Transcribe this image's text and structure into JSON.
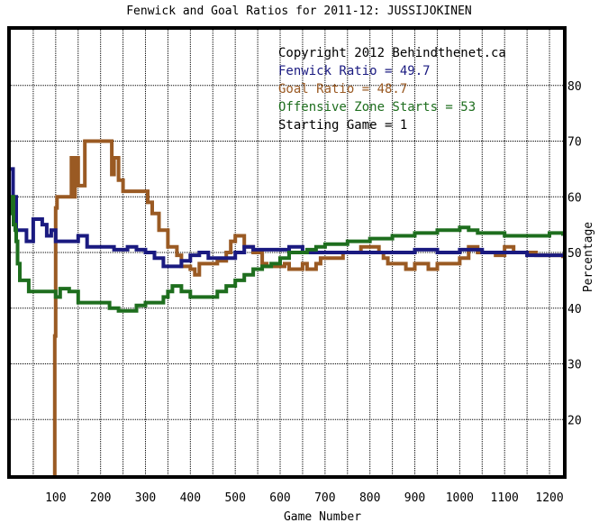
{
  "chart_data": {
    "type": "line",
    "title": "Fenwick and Goal Ratios for 2011-12: JUSSIJOKINEN",
    "xlabel": "Game Number",
    "ylabel": "Percentage",
    "xlim": [
      0,
      1230
    ],
    "ylim": [
      10,
      90
    ],
    "x_ticks": [
      100,
      200,
      300,
      400,
      500,
      600,
      700,
      800,
      900,
      1000,
      1100,
      1200
    ],
    "y_ticks": [
      20,
      30,
      40,
      50,
      60,
      70,
      80
    ],
    "grid": true,
    "legend_position": "top-right",
    "annotations": [
      {
        "text": "Copyright 2012 Behindthenet.ca",
        "color": "#000000"
      },
      {
        "text": "Fenwick Ratio = 49.7",
        "color": "#1a1a80"
      },
      {
        "text": "Goal Ratio = 48.7",
        "color": "#9a5a23"
      },
      {
        "text": "Offensive Zone Starts = 53",
        "color": "#1e6e1e"
      },
      {
        "text": "Starting Game = 1",
        "color": "#000000"
      }
    ],
    "series": [
      {
        "name": "Fenwick Ratio",
        "color": "#1a1a80",
        "points": [
          [
            0,
            65
          ],
          [
            5,
            60
          ],
          [
            12,
            54
          ],
          [
            25,
            54
          ],
          [
            35,
            52
          ],
          [
            50,
            56
          ],
          [
            60,
            56
          ],
          [
            70,
            55
          ],
          [
            80,
            53
          ],
          [
            90,
            54
          ],
          [
            100,
            52
          ],
          [
            130,
            52
          ],
          [
            150,
            53
          ],
          [
            170,
            51
          ],
          [
            200,
            51
          ],
          [
            230,
            50.5
          ],
          [
            260,
            51
          ],
          [
            280,
            50.5
          ],
          [
            300,
            50
          ],
          [
            320,
            49
          ],
          [
            340,
            47.5
          ],
          [
            360,
            47.5
          ],
          [
            380,
            48.5
          ],
          [
            400,
            49.5
          ],
          [
            420,
            50
          ],
          [
            440,
            49
          ],
          [
            460,
            49
          ],
          [
            480,
            49
          ],
          [
            500,
            50
          ],
          [
            520,
            51
          ],
          [
            540,
            50.5
          ],
          [
            560,
            50.5
          ],
          [
            580,
            50.5
          ],
          [
            600,
            50.5
          ],
          [
            620,
            51
          ],
          [
            650,
            50
          ],
          [
            700,
            50
          ],
          [
            750,
            50
          ],
          [
            800,
            50
          ],
          [
            850,
            50
          ],
          [
            900,
            50.5
          ],
          [
            950,
            50
          ],
          [
            1000,
            50.5
          ],
          [
            1050,
            50
          ],
          [
            1100,
            50
          ],
          [
            1150,
            49.5
          ],
          [
            1200,
            49.5
          ],
          [
            1230,
            49.5
          ]
        ]
      },
      {
        "name": "Goal Ratio",
        "color": "#9a5a23",
        "points": [
          [
            95,
            10
          ],
          [
            98,
            35
          ],
          [
            100,
            58
          ],
          [
            103,
            60
          ],
          [
            130,
            60
          ],
          [
            135,
            67
          ],
          [
            140,
            60
          ],
          [
            143,
            67
          ],
          [
            150,
            62
          ],
          [
            160,
            62
          ],
          [
            165,
            70
          ],
          [
            220,
            70
          ],
          [
            225,
            64
          ],
          [
            230,
            67
          ],
          [
            240,
            63
          ],
          [
            250,
            61
          ],
          [
            300,
            61
          ],
          [
            305,
            59
          ],
          [
            315,
            57
          ],
          [
            330,
            54
          ],
          [
            350,
            51
          ],
          [
            370,
            49.5
          ],
          [
            380,
            47.5
          ],
          [
            400,
            47
          ],
          [
            410,
            46
          ],
          [
            420,
            48
          ],
          [
            440,
            48
          ],
          [
            460,
            48.5
          ],
          [
            480,
            50
          ],
          [
            490,
            52
          ],
          [
            500,
            53
          ],
          [
            510,
            53
          ],
          [
            520,
            51
          ],
          [
            540,
            50
          ],
          [
            550,
            50
          ],
          [
            560,
            48
          ],
          [
            570,
            47.5
          ],
          [
            600,
            47.5
          ],
          [
            610,
            48
          ],
          [
            620,
            47
          ],
          [
            640,
            47
          ],
          [
            650,
            48
          ],
          [
            660,
            47
          ],
          [
            680,
            48
          ],
          [
            690,
            49
          ],
          [
            700,
            49
          ],
          [
            740,
            50
          ],
          [
            760,
            50
          ],
          [
            780,
            51
          ],
          [
            800,
            51
          ],
          [
            820,
            50
          ],
          [
            830,
            49
          ],
          [
            840,
            48
          ],
          [
            870,
            48
          ],
          [
            880,
            47
          ],
          [
            900,
            48
          ],
          [
            920,
            48
          ],
          [
            930,
            47
          ],
          [
            950,
            48
          ],
          [
            980,
            48
          ],
          [
            1000,
            49
          ],
          [
            1020,
            51
          ],
          [
            1040,
            50
          ],
          [
            1060,
            50
          ],
          [
            1080,
            49.5
          ],
          [
            1100,
            51
          ],
          [
            1120,
            50
          ],
          [
            1150,
            50
          ],
          [
            1170,
            49.5
          ],
          [
            1200,
            49.5
          ],
          [
            1230,
            49
          ]
        ]
      },
      {
        "name": "Offensive Zone Starts",
        "color": "#1e6e1e",
        "points": [
          [
            0,
            57
          ],
          [
            3,
            60
          ],
          [
            6,
            55
          ],
          [
            10,
            54
          ],
          [
            12,
            52
          ],
          [
            15,
            48
          ],
          [
            20,
            45
          ],
          [
            40,
            43
          ],
          [
            60,
            43
          ],
          [
            90,
            43
          ],
          [
            100,
            42
          ],
          [
            110,
            43.5
          ],
          [
            130,
            43
          ],
          [
            145,
            43
          ],
          [
            150,
            41
          ],
          [
            200,
            41
          ],
          [
            220,
            40
          ],
          [
            240,
            39.5
          ],
          [
            260,
            39.5
          ],
          [
            280,
            40.5
          ],
          [
            300,
            41
          ],
          [
            320,
            41
          ],
          [
            340,
            42
          ],
          [
            350,
            43
          ],
          [
            360,
            44
          ],
          [
            380,
            43
          ],
          [
            400,
            42
          ],
          [
            420,
            42
          ],
          [
            440,
            42
          ],
          [
            460,
            43
          ],
          [
            480,
            44
          ],
          [
            500,
            45
          ],
          [
            520,
            46
          ],
          [
            540,
            47
          ],
          [
            560,
            47.5
          ],
          [
            580,
            48
          ],
          [
            600,
            49
          ],
          [
            620,
            50
          ],
          [
            640,
            50
          ],
          [
            660,
            50.5
          ],
          [
            680,
            51
          ],
          [
            700,
            51.5
          ],
          [
            750,
            52
          ],
          [
            800,
            52.5
          ],
          [
            850,
            53
          ],
          [
            900,
            53.5
          ],
          [
            950,
            54
          ],
          [
            980,
            54
          ],
          [
            1000,
            54.5
          ],
          [
            1020,
            54
          ],
          [
            1040,
            53.5
          ],
          [
            1080,
            53.5
          ],
          [
            1100,
            53
          ],
          [
            1150,
            53
          ],
          [
            1200,
            53.5
          ],
          [
            1230,
            53
          ]
        ]
      }
    ]
  }
}
